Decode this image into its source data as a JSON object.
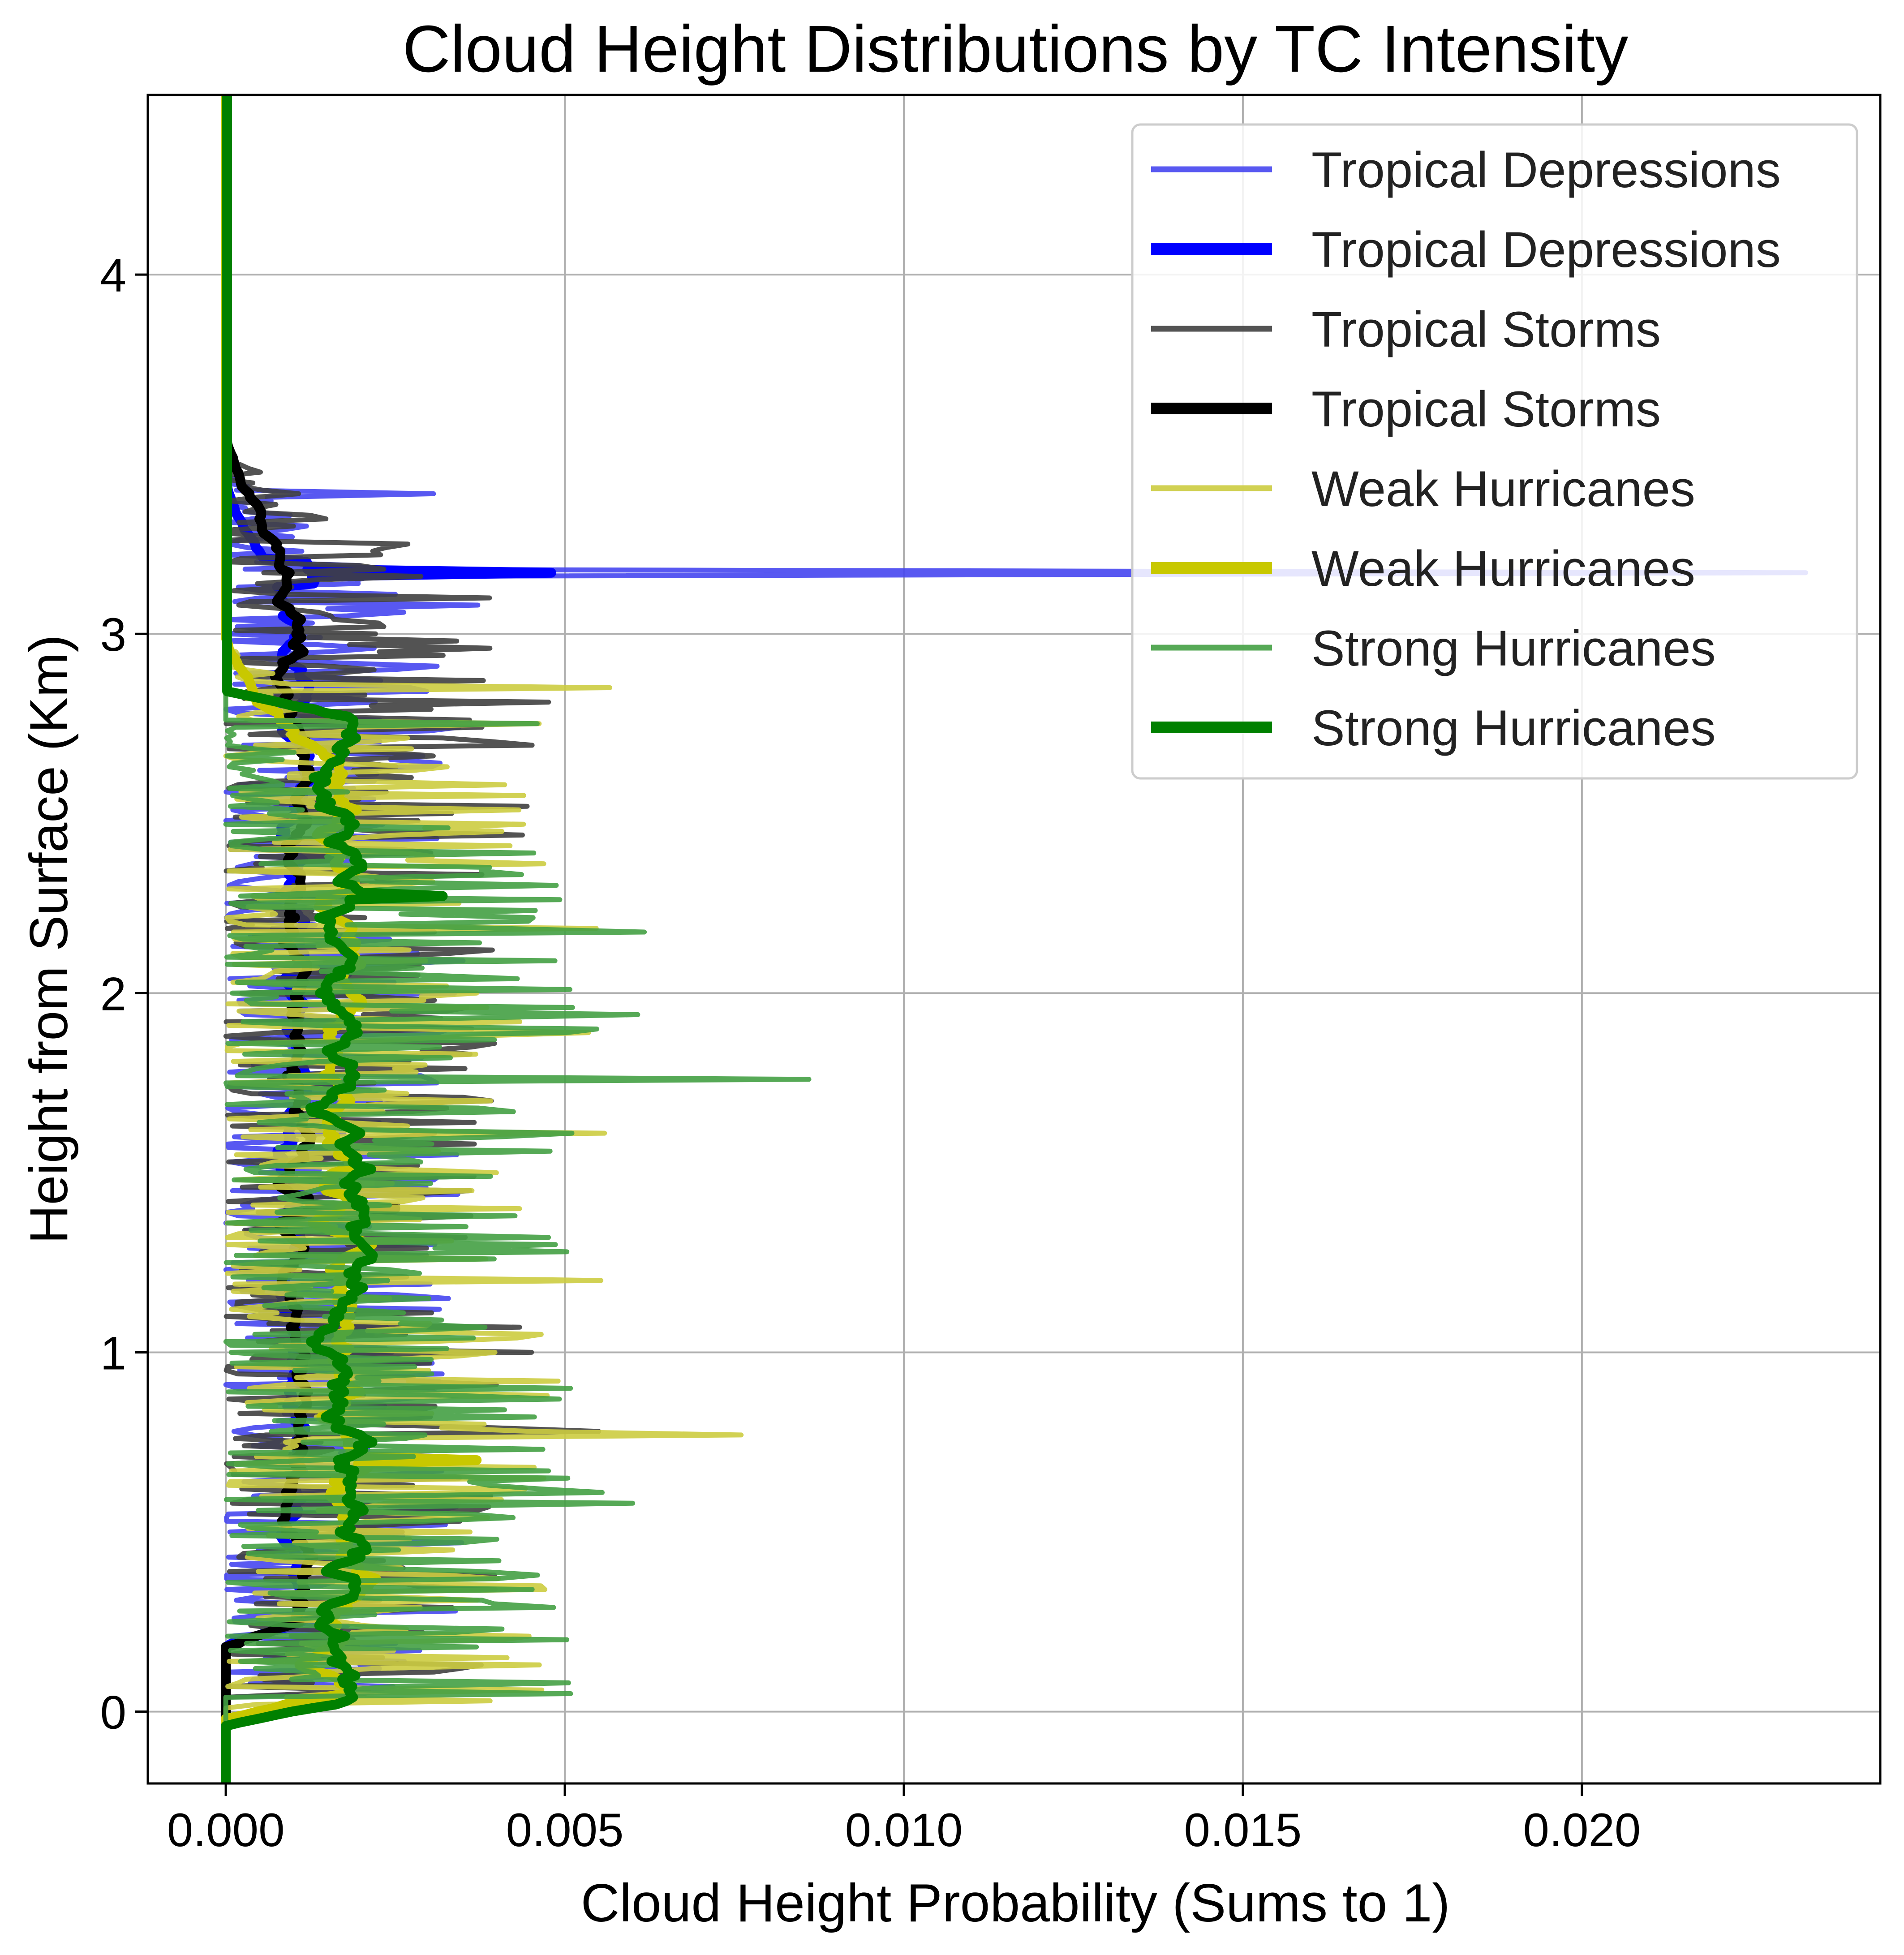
{
  "chart_data": {
    "type": "line",
    "title": "Cloud Height Distributions by TC Intensity",
    "xlabel": "Cloud Height Probability (Sums to 1)",
    "ylabel": "Height from Surface (Km)",
    "xlim": [
      -0.00115,
      0.0244
    ],
    "ylim": [
      -0.2,
      4.5
    ],
    "xticks": [
      "0.000",
      "0.005",
      "0.010",
      "0.015",
      "0.020"
    ],
    "xtick_values": [
      0,
      0.005,
      0.01,
      0.015,
      0.02
    ],
    "yticks": [
      "0",
      "1",
      "2",
      "3",
      "4"
    ],
    "ytick_values": [
      0,
      1,
      2,
      3,
      4
    ],
    "grid": true,
    "legend_position": "top-right",
    "series": [
      {
        "name": "Tropical Depressions",
        "color": "#4646f0",
        "style": "thin",
        "ymin": 0.05,
        "ymax": 3.45,
        "max_value": 0.0233,
        "peak_height": 3.17,
        "typical_max": 0.0035
      },
      {
        "name": "Tropical Depressions",
        "color": "#0000ff",
        "style": "thick",
        "ymin": 0.22,
        "ymax": 3.4,
        "max_value": 0.0048,
        "peak_height": 3.17,
        "typical_max": 0.0015
      },
      {
        "name": "Tropical Storms",
        "color": "#404040",
        "style": "thin",
        "ymin": 0.05,
        "ymax": 3.52,
        "max_value": 0.0055,
        "peak_height": 0.78,
        "typical_max": 0.004
      },
      {
        "name": "Tropical Storms",
        "color": "#000000",
        "style": "thick",
        "ymin": 0.22,
        "ymax": 3.52,
        "max_value": 0.0025,
        "peak_height": 1.4,
        "typical_max": 0.0015
      },
      {
        "name": "Weak Hurricanes",
        "color": "#cccc40",
        "style": "thin",
        "ymin": 0.02,
        "ymax": 2.95,
        "max_value": 0.0076,
        "peak_height": 0.77,
        "typical_max": 0.0048
      },
      {
        "name": "Weak Hurricanes",
        "color": "#c8c800",
        "style": "thick",
        "ymin": 0.02,
        "ymax": 2.95,
        "max_value": 0.0037,
        "peak_height": 0.7,
        "typical_max": 0.0025
      },
      {
        "name": "Strong Hurricanes",
        "color": "#44a044",
        "style": "thin",
        "ymin": 0.05,
        "ymax": 2.75,
        "max_value": 0.0086,
        "peak_height": 1.76,
        "typical_max": 0.0052
      },
      {
        "name": "Strong Hurricanes",
        "color": "#008000",
        "style": "thick",
        "ymin": 0.0,
        "ymax": 4.5,
        "max_value": 0.0032,
        "peak_height": 2.27,
        "typical_max": 0.0026
      }
    ]
  }
}
